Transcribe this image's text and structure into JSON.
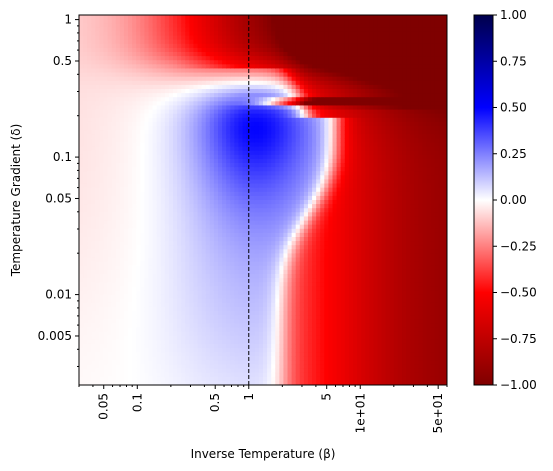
{
  "chart_data": {
    "type": "heatmap",
    "title": "",
    "xlabel": "Inverse Temperature (β)",
    "ylabel": "Temperature Gradient (δ)",
    "x_scale": "log",
    "y_scale": "log",
    "xlim": [
      0.03,
      60
    ],
    "ylim": [
      0.0022,
      1.08
    ],
    "x_ticks": [
      {
        "value": 0.05,
        "label": "0.05"
      },
      {
        "value": 0.1,
        "label": "0.1"
      },
      {
        "value": 0.5,
        "label": "0.5"
      },
      {
        "value": 1,
        "label": "1"
      },
      {
        "value": 5,
        "label": "5"
      },
      {
        "value": 10,
        "label": "1e+01"
      },
      {
        "value": 50,
        "label": "5e+01"
      }
    ],
    "y_ticks": [
      {
        "value": 1,
        "label": "1"
      },
      {
        "value": 0.5,
        "label": "0.5"
      },
      {
        "value": 0.1,
        "label": "0.1"
      },
      {
        "value": 0.05,
        "label": "0.05"
      },
      {
        "value": 0.01,
        "label": "0.01"
      },
      {
        "value": 0.005,
        "label": "0.005"
      }
    ],
    "reference_line": {
      "axis": "x",
      "value": 1,
      "style": "dashed",
      "color": "#000000"
    },
    "colormap": "seismic_r",
    "colorbar": {
      "vmin": -1.0,
      "vmax": 1.0,
      "ticks": [
        {
          "value": 1.0,
          "label": "1.00"
        },
        {
          "value": 0.75,
          "label": "0.75"
        },
        {
          "value": 0.5,
          "label": "0.50"
        },
        {
          "value": 0.25,
          "label": "0.25"
        },
        {
          "value": 0.0,
          "label": "0.00"
        },
        {
          "value": -0.25,
          "label": "−0.25"
        },
        {
          "value": -0.5,
          "label": "−0.50"
        },
        {
          "value": -0.75,
          "label": "−0.75"
        },
        {
          "value": -1.0,
          "label": "−1.00"
        }
      ]
    },
    "colors": {
      "max": "#00004c",
      "positive": "#0000ff",
      "zero": "#ffffff",
      "negative": "#ff0000",
      "min": "#7f0000"
    },
    "grid": false
  }
}
